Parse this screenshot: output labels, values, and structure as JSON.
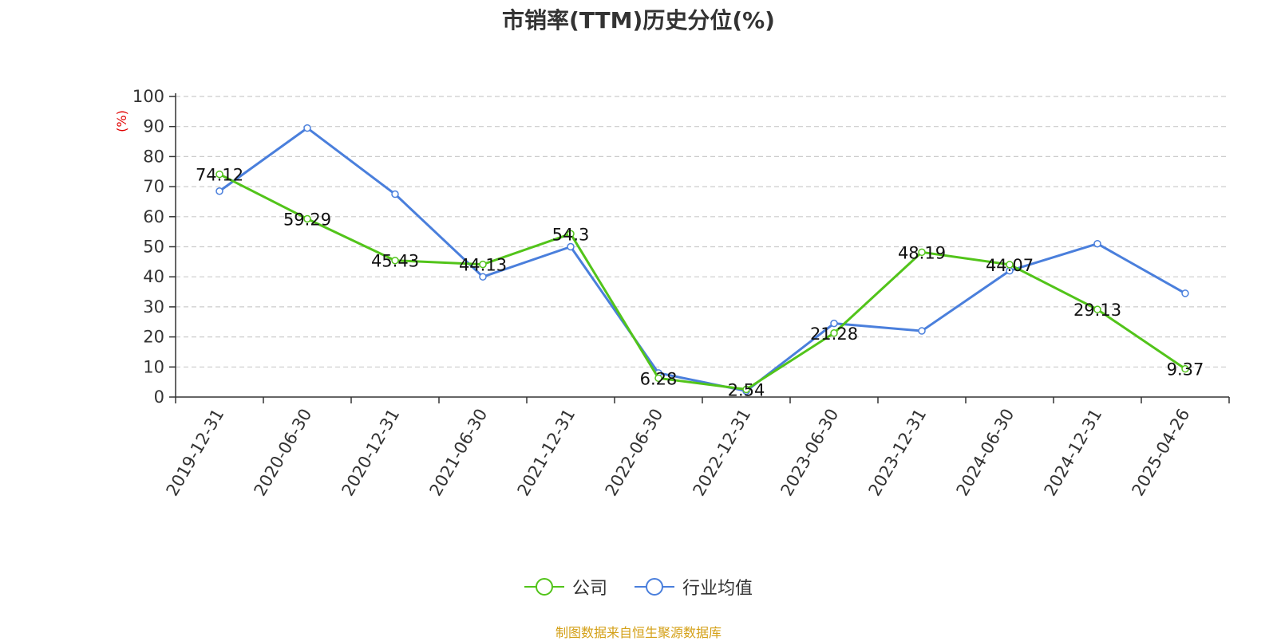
{
  "chart_data": {
    "type": "line",
    "title": "市销率(TTM)历史分位(%)",
    "ylabel": "(%)",
    "ylim": [
      0,
      100
    ],
    "yticks": [
      0,
      10,
      20,
      30,
      40,
      50,
      60,
      70,
      80,
      90,
      100
    ],
    "grid": true,
    "legend_position": "bottom-center",
    "categories": [
      "2019-12-31",
      "2020-06-30",
      "2020-12-31",
      "2021-06-30",
      "2021-12-31",
      "2022-06-30",
      "2022-12-31",
      "2023-06-30",
      "2023-12-31",
      "2024-06-30",
      "2024-12-31",
      "2025-04-26"
    ],
    "series": [
      {
        "name": "公司",
        "color": "#52c41a",
        "values": [
          74.12,
          59.29,
          45.43,
          44.13,
          54.3,
          6.28,
          2.54,
          21.28,
          48.19,
          44.07,
          29.13,
          9.37
        ],
        "data_labels": [
          "74.12",
          "59.29",
          "45.43",
          "44.13",
          "54.3",
          "6.28",
          "2.54",
          "21.28",
          "48.19",
          "44.07",
          "29.13",
          "9.37"
        ]
      },
      {
        "name": "行业均值",
        "color": "#4a7fdc",
        "values": [
          68.5,
          89.5,
          67.5,
          40.0,
          50.0,
          8.0,
          2.0,
          24.5,
          22.0,
          42.0,
          51.0,
          34.5
        ]
      }
    ]
  },
  "source_note": "制图数据来自恒生聚源数据库"
}
